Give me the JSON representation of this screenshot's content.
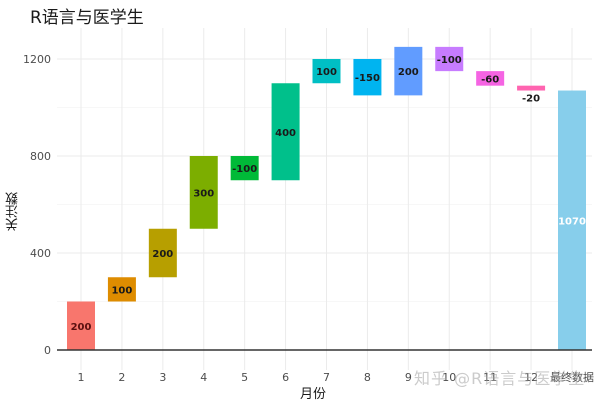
{
  "chart_data": {
    "type": "bar",
    "subtype": "waterfall",
    "title": "R语言与医学生",
    "xlabel": "月份",
    "ylabel": "关注数",
    "ylim": [
      0,
      1300
    ],
    "yticks": [
      0,
      400,
      800,
      1200
    ],
    "grid": true,
    "legend": "none",
    "categories": [
      "1",
      "2",
      "3",
      "4",
      "5",
      "6",
      "7",
      "8",
      "9",
      "10",
      "11",
      "12",
      "最终数据"
    ],
    "values": [
      200,
      100,
      200,
      300,
      -100,
      400,
      100,
      -150,
      200,
      -100,
      -60,
      -20,
      1070
    ],
    "starts": [
      0,
      200,
      300,
      500,
      800,
      700,
      1100,
      1200,
      1050,
      1250,
      1150,
      1090,
      0
    ],
    "ends": [
      200,
      300,
      500,
      800,
      700,
      1100,
      1200,
      1050,
      1250,
      1150,
      1090,
      1070,
      1070
    ],
    "labels": [
      "200",
      "100",
      "200",
      "300",
      "-100",
      "400",
      "100",
      "-150",
      "200",
      "-100",
      "-60",
      "-20",
      "1070"
    ],
    "colors": [
      "#F8766D",
      "#DE8C00",
      "#B79F00",
      "#7CAE00",
      "#00BA38",
      "#00C08B",
      "#00BFC4",
      "#00B4F0",
      "#619CFF",
      "#C77CFF",
      "#F564E3",
      "#FF64B0",
      "#87CEEB"
    ]
  },
  "header": {
    "title": "R语言与医学生"
  },
  "axes": {
    "x_title": "月份",
    "y_title": "关注数"
  },
  "watermark": "知乎 @R语言与医学生"
}
